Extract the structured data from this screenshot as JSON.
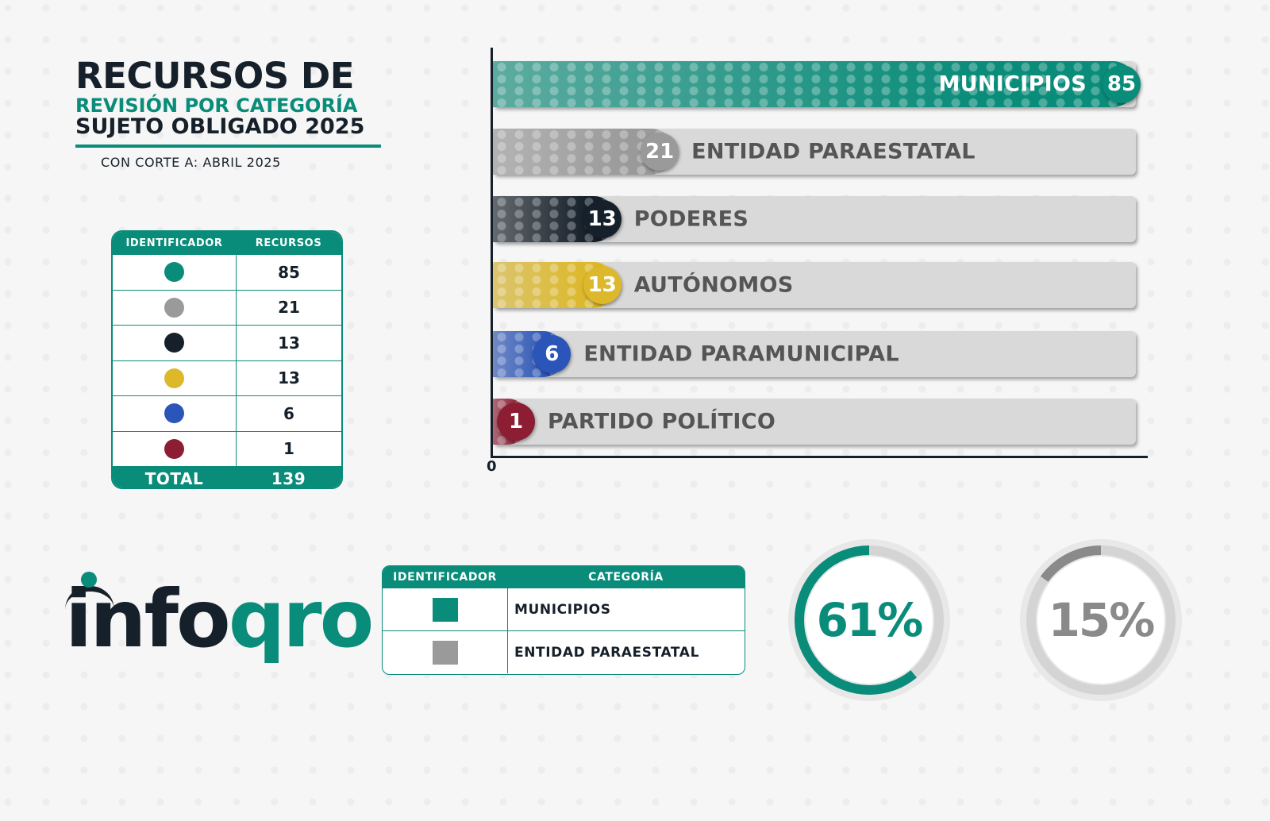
{
  "title": {
    "line1": "RECURSOS DE",
    "line2": "REVISIÓN POR CATEGORÍA",
    "line3": "SUJETO OBLIGADO 2025",
    "cutoff": "CON CORTE A: ABRIL 2025"
  },
  "resources_table": {
    "header_identifier": "IDENTIFICADOR",
    "header_resources": "RECURSOS",
    "rows": [
      {
        "color": "#0a8c7a",
        "value": "85"
      },
      {
        "color": "#9a9a9a",
        "value": "21"
      },
      {
        "color": "#16202a",
        "value": "13"
      },
      {
        "color": "#dcb82a",
        "value": "13"
      },
      {
        "color": "#2b55b8",
        "value": "6"
      },
      {
        "color": "#8c1d33",
        "value": "1"
      }
    ],
    "total_label": "TOTAL",
    "total_value": "139"
  },
  "chart_data": {
    "type": "bar",
    "orientation": "horizontal",
    "categories": [
      "MUNICIPIOS",
      "ENTIDAD PARAESTATAL",
      "PODERES",
      "AUTÓNOMOS",
      "ENTIDAD PARAMUNICIPAL",
      "PARTIDO POLÍTICO"
    ],
    "values": [
      85,
      21,
      13,
      13,
      6,
      1
    ],
    "colors": [
      "#0a8c7a",
      "#9a9a9a",
      "#16202a",
      "#dcb82a",
      "#2b55b8",
      "#8c1d33"
    ],
    "xlim": [
      0,
      85
    ],
    "x_tick_labels": [
      "0"
    ],
    "title": "",
    "xlabel": "",
    "ylabel": ""
  },
  "logo": {
    "part_dark": "info",
    "part_green": "qro"
  },
  "category_table": {
    "header_identifier": "IDENTIFICADOR",
    "header_category": "CATEGORÍA",
    "rows": [
      {
        "color": "#0a8c7a",
        "label": "MUNICIPIOS"
      },
      {
        "color": "#9a9a9a",
        "label": "ENTIDAD PARAESTATAL"
      }
    ]
  },
  "donuts": [
    {
      "percent": 61,
      "label": "61%",
      "color": "#0a8c7a"
    },
    {
      "percent": 15,
      "label": "15%",
      "color": "#8a8a8a"
    }
  ]
}
